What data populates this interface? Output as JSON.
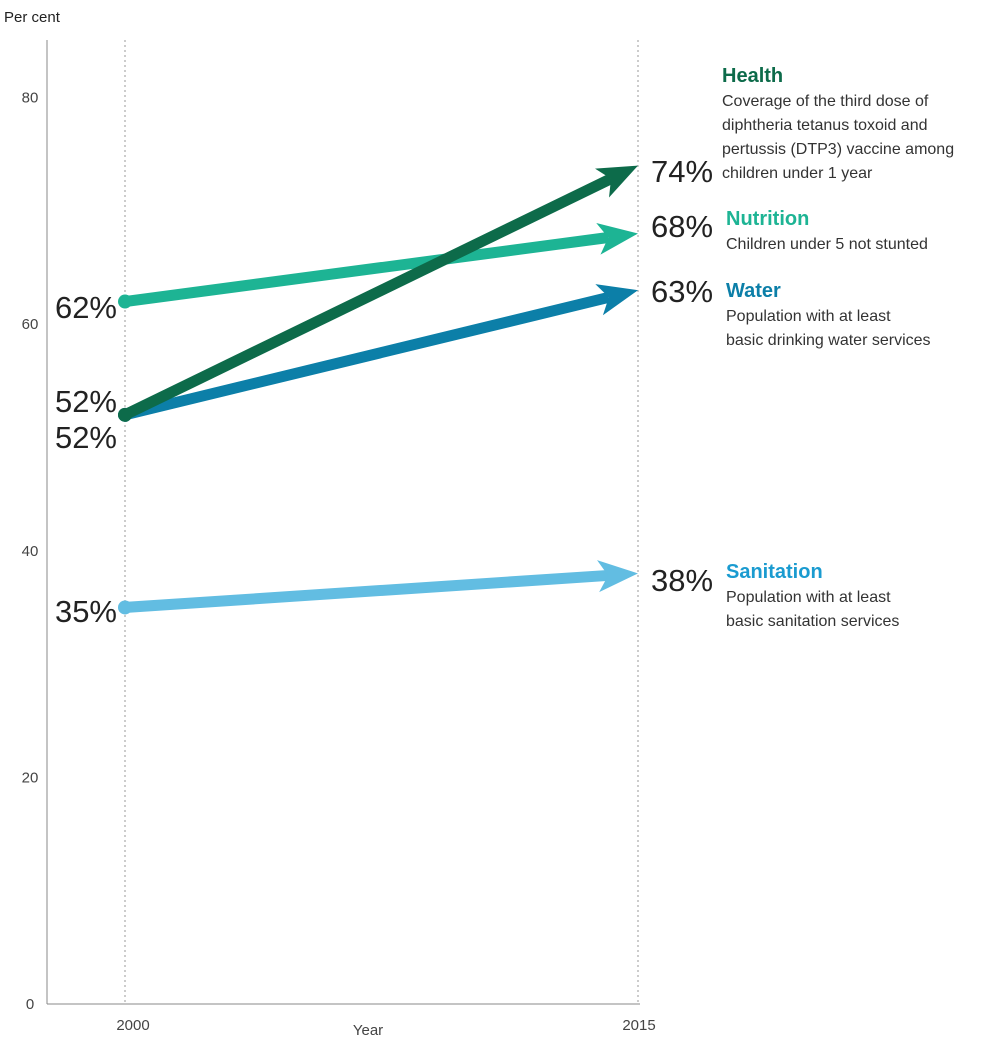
{
  "chart_data": {
    "type": "line",
    "ylabel": "Per cent",
    "xlabel": "Year",
    "x": [
      2000,
      2015
    ],
    "ylim": [
      0,
      85
    ],
    "yticks": [
      0,
      20,
      40,
      60,
      80
    ],
    "grid": false,
    "series": [
      {
        "name": "Health",
        "description_lines": [
          "Coverage of the third dose of",
          "diphtheria tetanus toxoid and",
          "pertussis (DTP3) vaccine among",
          "children under 1 year"
        ],
        "values": [
          52,
          74
        ],
        "labels": [
          "52%",
          "74%"
        ],
        "color": "#0d6b4a"
      },
      {
        "name": "Nutrition",
        "description_lines": [
          "Children under 5 not stunted"
        ],
        "values": [
          62,
          68
        ],
        "labels": [
          "62%",
          "68%"
        ],
        "color": "#1db494"
      },
      {
        "name": "Water",
        "description_lines": [
          "Population with at least",
          "basic drinking water services"
        ],
        "values": [
          52,
          63
        ],
        "labels": [
          "52%",
          "63%"
        ],
        "color": "#0c7fa8"
      },
      {
        "name": "Sanitation",
        "description_lines": [
          "Population with at least",
          "basic sanitation services"
        ],
        "values": [
          35,
          38
        ],
        "labels": [
          "35%",
          "38%"
        ],
        "color": "#62bde2"
      }
    ]
  }
}
